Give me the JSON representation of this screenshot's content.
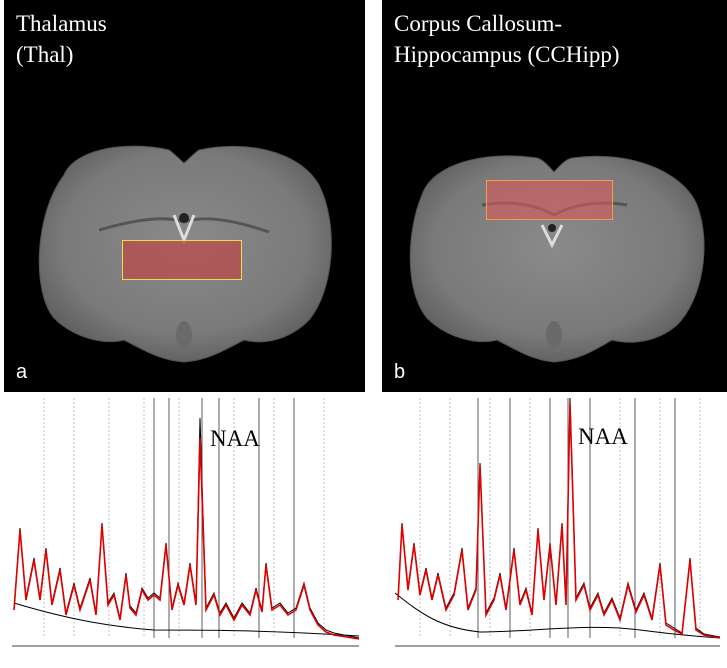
{
  "panels": [
    {
      "title_line1": "Thalamus",
      "title_line2": "(Thal)",
      "letter": "a",
      "roi_color": "#e8e04a"
    },
    {
      "title_line1": "Corpus Callosum-",
      "title_line2": "Hippocampus (CCHipp)",
      "letter": "b",
      "roi_color": "#f0a040"
    }
  ],
  "spectra": [
    {
      "peak_label": "NAA",
      "fit_color": "#e00000",
      "data_color": "#000000"
    },
    {
      "peak_label": "NAA",
      "fit_color": "#e00000",
      "data_color": "#000000"
    }
  ]
}
